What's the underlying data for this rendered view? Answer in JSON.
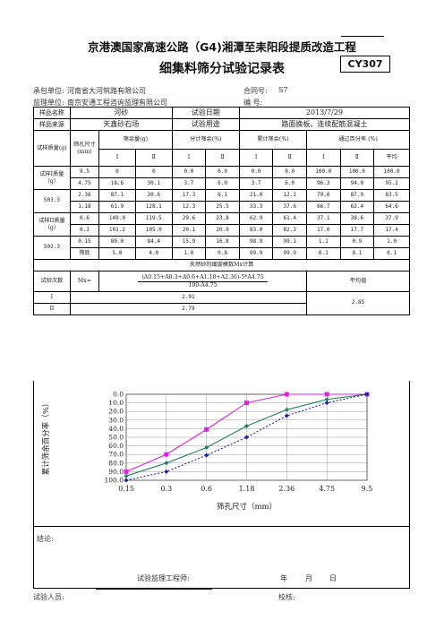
{
  "header": {
    "title_main": "京港澳国家高速公路（G4)湘潭至耒阳段提质改造工程",
    "title_sub": "细集料筛分试验记录表",
    "form_code": "CY307"
  },
  "meta": {
    "contractor_label": "承包单位:",
    "contractor": "河南省大河筑路有限公司",
    "contract_label": "合同号:",
    "contract_no": "S7",
    "supervisor_label": "监理单位:",
    "supervisor": "南京安通工程咨询监理有限公司",
    "serial_label": "编    号:"
  },
  "info": {
    "sample_name_label": "样品名称",
    "sample_name": "河砂",
    "test_date_label": "试验日期",
    "test_date": "2013/7/29",
    "sample_source_label": "样品来源",
    "sample_source": "天鑫砂石场",
    "test_use_label": "试验用途",
    "test_use": "路面换板、连续配筋混凝土"
  },
  "table_head": {
    "sample_mass_label": "试样质量(g)",
    "sieve_size_label": "筛孔尺寸(mm)",
    "retained_mass_label": "筛余量(g)",
    "individual_pct_label": "分计筛余(%)",
    "cumulative_pct_label": "累计筛余(%)",
    "passing_pct_label": "通过百分率  (%)",
    "col_I": "Ⅰ",
    "col_II": "Ⅱ",
    "avg_label": "平均"
  },
  "samples": {
    "mass1_label": "试样I质量（g）",
    "mass1": "503.3",
    "mass2_label": "试样II质量（g）",
    "mass2": "502.3"
  },
  "rows": [
    {
      "sieve": "9.5",
      "m1": "0",
      "m2": "0",
      "a1": "0.0",
      "a2": "0.0",
      "c1": "0.0",
      "c2": "0.0",
      "p1": "100.0",
      "p2": "100.0",
      "pa": "100.0"
    },
    {
      "sieve": "4.75",
      "m1": "18.6",
      "m2": "30.1",
      "a1": "3.7",
      "a2": "6.0",
      "c1": "3.7",
      "c2": "6.0",
      "p1": "96.3",
      "p2": "94.0",
      "pa": "95.2"
    },
    {
      "sieve": "2.36",
      "m1": "87.1",
      "m2": "30.6",
      "a1": "17.3",
      "a2": "6.1",
      "c1": "21.0",
      "c2": "12.1",
      "p1": "79.0",
      "p2": "87.9",
      "pa": "83.5"
    },
    {
      "sieve": "1.18",
      "m1": "61.9",
      "m2": "128.1",
      "a1": "12.3",
      "a2": "25.5",
      "c1": "33.3",
      "c2": "37.6",
      "p1": "66.7",
      "p2": "62.4",
      "pa": "64.6"
    },
    {
      "sieve": "0.6",
      "m1": "149.0",
      "m2": "119.5",
      "a1": "29.6",
      "a2": "23.8",
      "c1": "62.9",
      "c2": "61.4",
      "p1": "37.1",
      "p2": "38.6",
      "pa": "37.9"
    },
    {
      "sieve": "0.3",
      "m1": "101.2",
      "m2": "105.0",
      "a1": "20.1",
      "a2": "20.9",
      "c1": "83.0",
      "c2": "82.3",
      "p1": "17.0",
      "p2": "17.7",
      "pa": "17.4"
    },
    {
      "sieve": "0.15",
      "m1": "80.0",
      "m2": "84.4",
      "a1": "15.9",
      "a2": "16.8",
      "c1": "98.9",
      "c2": "99.1",
      "p1": "1.1",
      "p2": "0.9",
      "pa": "1.0"
    },
    {
      "sieve": "筛底",
      "m1": "5.0",
      "m2": "4.0",
      "a1": "1.0",
      "a2": "0.8",
      "c1": "99.9",
      "c2": "99.9",
      "p1": "0.1",
      "p2": "0.1",
      "pa": "0.1"
    }
  ],
  "fineness": {
    "section_title": "天然砂的细度模数Mx计算",
    "trial_label": "试验次数",
    "mx_label": "Mx=",
    "formula_num": "(A0.15+A0.3+A0.6+A1.18+A2.36)-5*A4.75",
    "formula_den": "100-A4.75",
    "avg_label": "平均值",
    "trial1_label": "I",
    "trial1": "2.91",
    "trial2_label": "II",
    "trial2": "2.79",
    "average": "2.85"
  },
  "chart_data": {
    "type": "line",
    "ylabel": "累计筛余百分率（%）",
    "xlabel": "筛孔尺寸（mm）",
    "categories": [
      "0.15",
      "0.3",
      "0.6",
      "1.18",
      "2.36",
      "4.75",
      "9.5"
    ],
    "yticks": [
      "0.0",
      "10.0",
      "20.0",
      "30.0",
      "40.0",
      "50.0",
      "60.0",
      "70.0",
      "80.0",
      "90.0",
      "100.0"
    ],
    "ylim": [
      100,
      0
    ],
    "series": [
      {
        "values": [
          90,
          70,
          41,
          10,
          0,
          0,
          0
        ],
        "color": "#e020e0",
        "dash": "",
        "marker": "square"
      },
      {
        "values": [
          95,
          80,
          62,
          37,
          18,
          6,
          0
        ],
        "color": "#208060",
        "dash": "",
        "marker": "diamond"
      },
      {
        "values": [
          100,
          90,
          71,
          50,
          25,
          10,
          0
        ],
        "color": "#2020a0",
        "dash": "2,2",
        "marker": "diamond"
      }
    ]
  },
  "footer": {
    "conclusion_label": "结论:",
    "engineer_label": "试验监理工程师:",
    "year_label": "年",
    "month_label": "月",
    "day_label": "日",
    "tester_label": "试验人员:",
    "checker_label": "校核:"
  }
}
